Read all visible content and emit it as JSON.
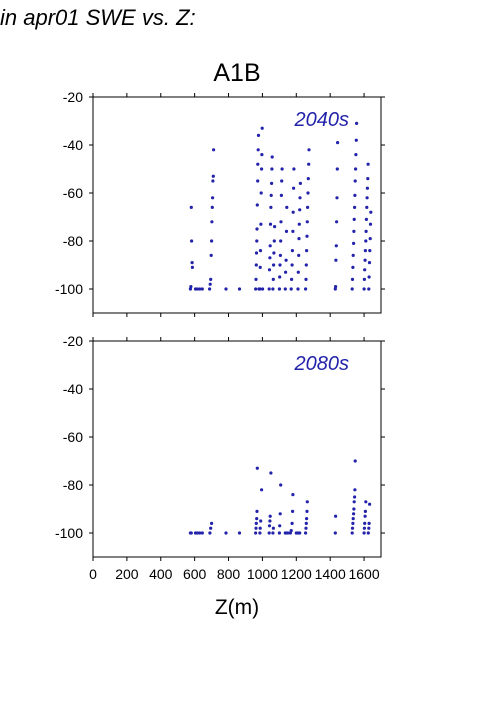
{
  "page_title": "in apr01 SWE vs. Z:",
  "scenario": "A1B",
  "colors": {
    "points": "#2222aa",
    "period_label": "#2222aa",
    "axis": "#000000"
  },
  "x_axis": {
    "label": "Z(m)",
    "ticks": [
      0,
      200,
      400,
      600,
      800,
      1000,
      1200,
      1400,
      1600
    ],
    "range": [
      0,
      1700
    ]
  },
  "y_axis": {
    "ticks": [
      -20,
      -40,
      -60,
      -80,
      -100
    ],
    "range": [
      -110,
      -20
    ]
  },
  "chart_data": [
    {
      "type": "scatter",
      "title": "2040s",
      "xlim": [
        0,
        1700
      ],
      "ylim": [
        -110,
        -20
      ],
      "points": [
        [
          575,
          -100
        ],
        [
          578,
          -99
        ],
        [
          580,
          -66
        ],
        [
          582,
          -80
        ],
        [
          585,
          -89
        ],
        [
          587,
          -91
        ],
        [
          605,
          -100
        ],
        [
          615,
          -100
        ],
        [
          630,
          -100
        ],
        [
          645,
          -100
        ],
        [
          688,
          -100
        ],
        [
          692,
          -98
        ],
        [
          695,
          -96
        ],
        [
          698,
          -86
        ],
        [
          700,
          -80
        ],
        [
          702,
          -72
        ],
        [
          704,
          -66
        ],
        [
          706,
          -62
        ],
        [
          708,
          -55
        ],
        [
          710,
          -53
        ],
        [
          712,
          -42
        ],
        [
          785,
          -100
        ],
        [
          865,
          -100
        ],
        [
          960,
          -100
        ],
        [
          962,
          -96
        ],
        [
          964,
          -90
        ],
        [
          965,
          -85
        ],
        [
          967,
          -80
        ],
        [
          968,
          -75
        ],
        [
          970,
          -65
        ],
        [
          972,
          -55
        ],
        [
          973,
          -48
        ],
        [
          975,
          -42
        ],
        [
          977,
          -36
        ],
        [
          979,
          -100
        ],
        [
          985,
          -100
        ],
        [
          987,
          -91
        ],
        [
          989,
          -84
        ],
        [
          991,
          -73
        ],
        [
          993,
          -60
        ],
        [
          995,
          -50
        ],
        [
          997,
          -44
        ],
        [
          999,
          -33
        ],
        [
          1001,
          -100
        ],
        [
          1040,
          -100
        ],
        [
          1042,
          -92
        ],
        [
          1044,
          -87
        ],
        [
          1046,
          -82
        ],
        [
          1048,
          -73
        ],
        [
          1050,
          -66
        ],
        [
          1052,
          -61
        ],
        [
          1054,
          -56
        ],
        [
          1056,
          -50
        ],
        [
          1058,
          -45
        ],
        [
          1062,
          -100
        ],
        [
          1064,
          -96
        ],
        [
          1066,
          -90
        ],
        [
          1068,
          -85
        ],
        [
          1070,
          -80
        ],
        [
          1072,
          -74
        ],
        [
          1100,
          -100
        ],
        [
          1102,
          -95
        ],
        [
          1104,
          -90
        ],
        [
          1106,
          -86
        ],
        [
          1108,
          -80
        ],
        [
          1110,
          -72
        ],
        [
          1112,
          -61
        ],
        [
          1114,
          -55
        ],
        [
          1116,
          -50
        ],
        [
          1135,
          -100
        ],
        [
          1137,
          -93
        ],
        [
          1140,
          -88
        ],
        [
          1142,
          -76
        ],
        [
          1144,
          -66
        ],
        [
          1170,
          -100
        ],
        [
          1172,
          -96
        ],
        [
          1175,
          -90
        ],
        [
          1177,
          -84
        ],
        [
          1180,
          -76
        ],
        [
          1182,
          -68
        ],
        [
          1184,
          -58
        ],
        [
          1186,
          -50
        ],
        [
          1210,
          -100
        ],
        [
          1212,
          -93
        ],
        [
          1214,
          -86
        ],
        [
          1216,
          -79
        ],
        [
          1218,
          -73
        ],
        [
          1220,
          -67
        ],
        [
          1222,
          -62
        ],
        [
          1224,
          -56
        ],
        [
          1255,
          -100
        ],
        [
          1257,
          -96
        ],
        [
          1259,
          -90
        ],
        [
          1261,
          -84
        ],
        [
          1263,
          -78
        ],
        [
          1265,
          -72
        ],
        [
          1267,
          -66
        ],
        [
          1269,
          -60
        ],
        [
          1271,
          -54
        ],
        [
          1273,
          -48
        ],
        [
          1275,
          -42
        ],
        [
          1430,
          -100
        ],
        [
          1432,
          -99
        ],
        [
          1434,
          -88
        ],
        [
          1436,
          -82
        ],
        [
          1438,
          -72
        ],
        [
          1440,
          -62
        ],
        [
          1442,
          -50
        ],
        [
          1444,
          -39
        ],
        [
          1530,
          -100
        ],
        [
          1532,
          -96
        ],
        [
          1534,
          -91
        ],
        [
          1536,
          -86
        ],
        [
          1538,
          -81
        ],
        [
          1540,
          -76
        ],
        [
          1542,
          -71
        ],
        [
          1544,
          -66
        ],
        [
          1546,
          -61
        ],
        [
          1548,
          -55
        ],
        [
          1550,
          -50
        ],
        [
          1552,
          -44
        ],
        [
          1554,
          -38
        ],
        [
          1556,
          -31
        ],
        [
          1600,
          -100
        ],
        [
          1602,
          -96
        ],
        [
          1604,
          -92
        ],
        [
          1606,
          -88
        ],
        [
          1608,
          -84
        ],
        [
          1610,
          -80
        ],
        [
          1612,
          -76
        ],
        [
          1614,
          -71
        ],
        [
          1616,
          -66
        ],
        [
          1618,
          -62
        ],
        [
          1620,
          -58
        ],
        [
          1622,
          -54
        ],
        [
          1624,
          -48
        ],
        [
          1628,
          -100
        ],
        [
          1630,
          -95
        ],
        [
          1632,
          -89
        ],
        [
          1634,
          -84
        ],
        [
          1636,
          -79
        ],
        [
          1638,
          -73
        ],
        [
          1640,
          -68
        ]
      ]
    },
    {
      "type": "scatter",
      "title": "2080s",
      "xlim": [
        0,
        1700
      ],
      "ylim": [
        -110,
        -20
      ],
      "points": [
        [
          575,
          -100
        ],
        [
          580,
          -100
        ],
        [
          605,
          -100
        ],
        [
          615,
          -100
        ],
        [
          630,
          -100
        ],
        [
          645,
          -100
        ],
        [
          690,
          -100
        ],
        [
          695,
          -98
        ],
        [
          700,
          -96
        ],
        [
          785,
          -100
        ],
        [
          865,
          -100
        ],
        [
          960,
          -100
        ],
        [
          962,
          -98
        ],
        [
          964,
          -96
        ],
        [
          966,
          -94
        ],
        [
          968,
          -91
        ],
        [
          970,
          -73
        ],
        [
          985,
          -100
        ],
        [
          987,
          -98
        ],
        [
          990,
          -95
        ],
        [
          995,
          -82
        ],
        [
          1040,
          -100
        ],
        [
          1042,
          -97
        ],
        [
          1044,
          -95
        ],
        [
          1046,
          -93
        ],
        [
          1050,
          -75
        ],
        [
          1062,
          -100
        ],
        [
          1065,
          -98
        ],
        [
          1100,
          -100
        ],
        [
          1102,
          -97
        ],
        [
          1105,
          -92
        ],
        [
          1108,
          -80
        ],
        [
          1135,
          -100
        ],
        [
          1140,
          -100
        ],
        [
          1150,
          -100
        ],
        [
          1165,
          -100
        ],
        [
          1170,
          -99
        ],
        [
          1175,
          -96
        ],
        [
          1178,
          -91
        ],
        [
          1180,
          -84
        ],
        [
          1200,
          -100
        ],
        [
          1210,
          -100
        ],
        [
          1220,
          -100
        ],
        [
          1255,
          -100
        ],
        [
          1257,
          -98
        ],
        [
          1259,
          -96
        ],
        [
          1261,
          -94
        ],
        [
          1263,
          -91
        ],
        [
          1265,
          -87
        ],
        [
          1430,
          -100
        ],
        [
          1432,
          -93
        ],
        [
          1530,
          -100
        ],
        [
          1532,
          -98
        ],
        [
          1534,
          -96
        ],
        [
          1536,
          -94
        ],
        [
          1538,
          -92
        ],
        [
          1540,
          -90
        ],
        [
          1542,
          -87
        ],
        [
          1544,
          -85
        ],
        [
          1546,
          -82
        ],
        [
          1548,
          -70
        ],
        [
          1600,
          -100
        ],
        [
          1602,
          -98
        ],
        [
          1604,
          -96
        ],
        [
          1606,
          -93
        ],
        [
          1608,
          -91
        ],
        [
          1610,
          -87
        ],
        [
          1625,
          -100
        ],
        [
          1628,
          -98
        ],
        [
          1630,
          -96
        ],
        [
          1633,
          -88
        ]
      ]
    }
  ]
}
